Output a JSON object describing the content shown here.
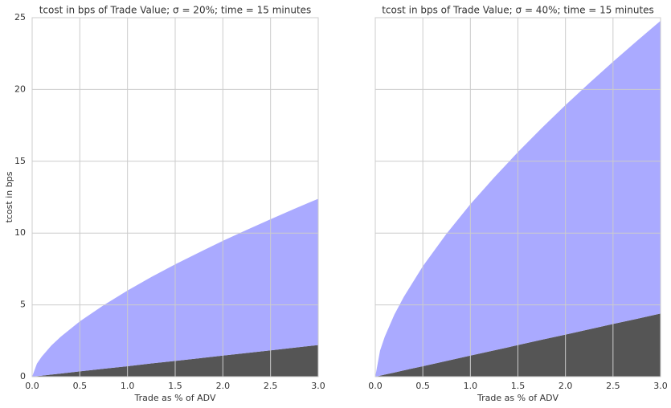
{
  "chart_data": [
    {
      "type": "area",
      "stacked": true,
      "title": "tcost in bps of Trade Value; σ = 20%; time = 15 minutes",
      "xlabel": "Trade as % of ADV",
      "ylabel": "tcost in bps",
      "x": [
        0,
        0.05,
        0.1,
        0.2,
        0.3,
        0.5,
        0.75,
        1.0,
        1.25,
        1.5,
        1.75,
        2.0,
        2.25,
        2.5,
        2.75,
        3.0
      ],
      "series": [
        {
          "color": "#555555",
          "values": [
            0,
            0.04,
            0.07,
            0.15,
            0.22,
            0.37,
            0.55,
            0.73,
            0.92,
            1.1,
            1.28,
            1.47,
            1.65,
            1.83,
            2.02,
            2.2
          ]
        },
        {
          "color": "#aaaaff",
          "values": [
            0,
            0.87,
            1.32,
            2.01,
            2.56,
            3.48,
            4.43,
            5.27,
            6.02,
            6.72,
            7.37,
            7.99,
            8.57,
            9.13,
            9.67,
            10.19
          ]
        }
      ],
      "xlim": [
        0,
        3
      ],
      "ylim": [
        0,
        25
      ],
      "xticks": [
        {
          "value": 0,
          "label": "0.0"
        },
        0.5,
        {
          "value": 1,
          "label": "1.0"
        },
        1.5,
        {
          "value": 2,
          "label": "2.0"
        },
        2.5,
        {
          "value": 3,
          "label": "3.0"
        }
      ],
      "yticks": [
        0,
        5,
        10,
        15,
        20,
        25
      ],
      "ytick_labels": true,
      "grid": true
    },
    {
      "type": "area",
      "stacked": true,
      "title": "tcost in bps of Trade Value; σ = 40%; time = 15 minutes",
      "xlabel": "Trade as % of ADV",
      "x": [
        0,
        0.05,
        0.1,
        0.2,
        0.3,
        0.5,
        0.75,
        1.0,
        1.25,
        1.5,
        1.75,
        2.0,
        2.25,
        2.5,
        2.75,
        3.0
      ],
      "series": [
        {
          "color": "#555555",
          "values": [
            0,
            0.07,
            0.15,
            0.29,
            0.44,
            0.73,
            1.1,
            1.47,
            1.83,
            2.2,
            2.57,
            2.93,
            3.3,
            3.67,
            4.03,
            4.4
          ]
        },
        {
          "color": "#aaaaff",
          "values": [
            0,
            1.74,
            2.64,
            4.02,
            5.12,
            6.96,
            8.86,
            10.54,
            12.04,
            13.44,
            14.74,
            15.98,
            17.14,
            18.26,
            19.34,
            20.38
          ]
        }
      ],
      "xlim": [
        0,
        3
      ],
      "ylim": [
        0,
        25
      ],
      "xticks": [
        {
          "value": 0,
          "label": "0.0"
        },
        0.5,
        {
          "value": 1,
          "label": "1.0"
        },
        1.5,
        {
          "value": 2,
          "label": "2.0"
        },
        2.5,
        {
          "value": 3,
          "label": "3.0"
        }
      ],
      "yticks": [
        0,
        5,
        10,
        15,
        20,
        25
      ],
      "ytick_labels": false,
      "grid": true
    }
  ]
}
